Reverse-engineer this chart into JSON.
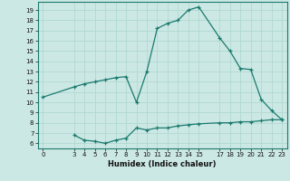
{
  "title": "",
  "xlabel": "Humidex (Indice chaleur)",
  "ylabel": "",
  "bg_color": "#cce8e4",
  "line_color": "#1a7a6e",
  "grid_color": "#b0d8d2",
  "upper_line": {
    "x": [
      0,
      3,
      4,
      5,
      6,
      7,
      8,
      9,
      10,
      11,
      12,
      13,
      14,
      15,
      17,
      18,
      19,
      20,
      21,
      22,
      23
    ],
    "y": [
      10.5,
      11.5,
      11.8,
      12.0,
      12.2,
      12.4,
      12.5,
      10.0,
      13.0,
      17.2,
      17.7,
      18.0,
      19.0,
      19.3,
      16.3,
      15.0,
      13.3,
      13.2,
      10.3,
      9.2,
      8.3
    ]
  },
  "lower_line": {
    "x": [
      3,
      4,
      5,
      6,
      7,
      8,
      9,
      10,
      11,
      12,
      13,
      14,
      15,
      17,
      18,
      19,
      20,
      21,
      22,
      23
    ],
    "y": [
      6.8,
      6.3,
      6.2,
      6.0,
      6.3,
      6.5,
      7.5,
      7.3,
      7.5,
      7.5,
      7.7,
      7.8,
      7.9,
      8.0,
      8.0,
      8.1,
      8.1,
      8.2,
      8.3,
      8.3
    ]
  },
  "xticks": [
    0,
    3,
    4,
    5,
    6,
    7,
    8,
    9,
    10,
    11,
    12,
    13,
    14,
    15,
    17,
    18,
    19,
    20,
    21,
    22,
    23
  ],
  "yticks": [
    6,
    7,
    8,
    9,
    10,
    11,
    12,
    13,
    14,
    15,
    16,
    17,
    18,
    19
  ],
  "xlim": [
    -0.5,
    23.5
  ],
  "ylim": [
    5.5,
    19.8
  ]
}
